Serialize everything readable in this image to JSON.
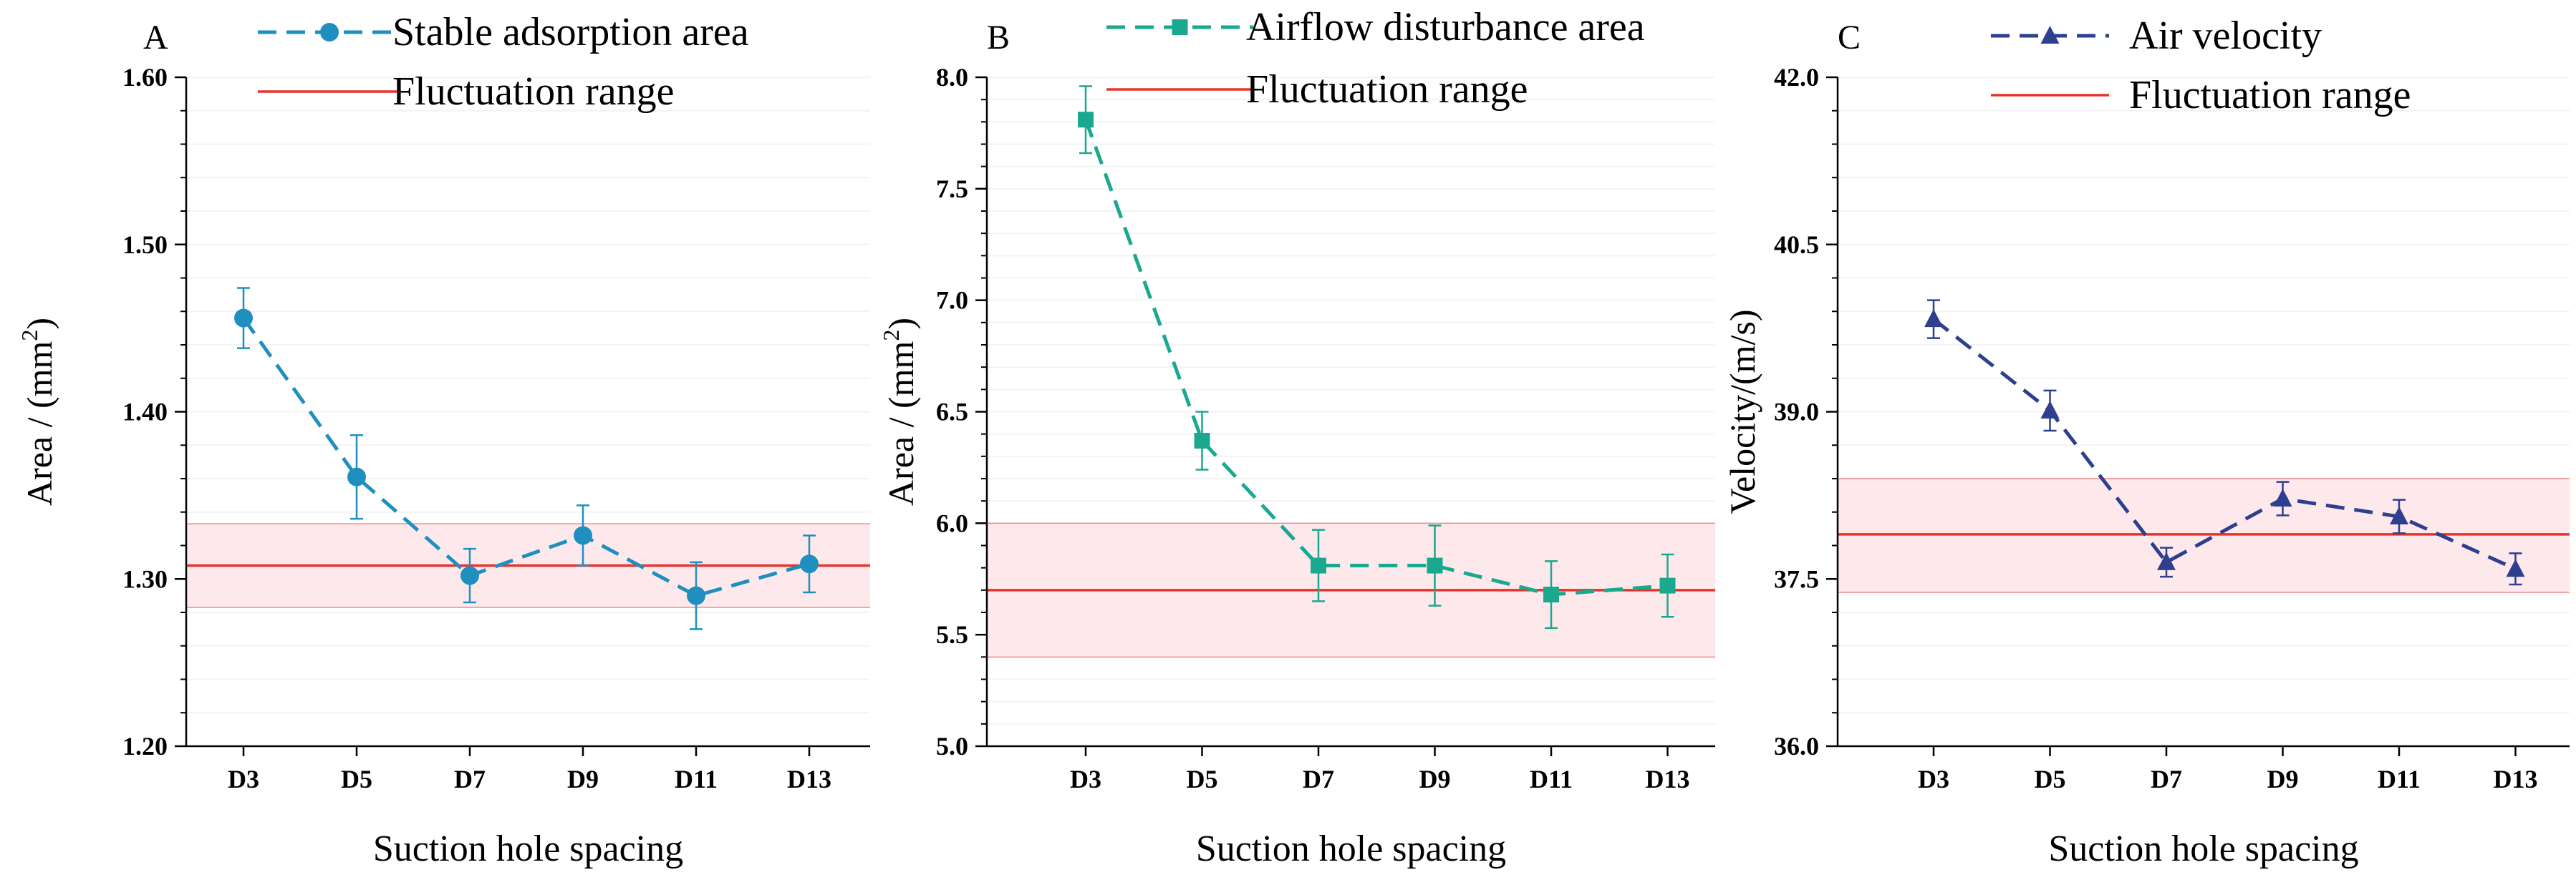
{
  "chart_data": [
    {
      "type": "line",
      "panel": "A",
      "title": "",
      "xlabel": "Suction hole spacing",
      "ylabel": "Area / (mm2)",
      "ylabel_main": "Area / (mm",
      "ylabel_sup": "2",
      "ylabel_tail": ")",
      "categories": [
        "D3",
        "D5",
        "D7",
        "D9",
        "D11",
        "D13"
      ],
      "series": [
        {
          "name": "Stable adsorption area",
          "marker": "circle",
          "color": "#1f8fc0",
          "values": [
            1.456,
            1.361,
            1.302,
            1.326,
            1.29,
            1.309
          ],
          "errors": [
            0.018,
            0.025,
            0.016,
            0.018,
            0.02,
            0.017
          ]
        }
      ],
      "reference": {
        "name": "Fluctuation range",
        "value": 1.308,
        "band": [
          1.283,
          1.333
        ],
        "color": "#e8332a",
        "band_color": "#fde9ec"
      },
      "ylim": [
        1.2,
        1.6
      ],
      "yticks": [
        "1.20",
        "1.30",
        "1.40",
        "1.50",
        "1.60"
      ],
      "ytick_values": [
        1.2,
        1.3,
        1.4,
        1.5,
        1.6
      ],
      "yminor_step": 0.02,
      "grid": true,
      "legend": "top"
    },
    {
      "type": "line",
      "panel": "B",
      "title": "",
      "xlabel": "Suction hole spacing",
      "ylabel": "Area / (mm2)",
      "ylabel_main": "Area / (mm",
      "ylabel_sup": "2",
      "ylabel_tail": ")",
      "categories": [
        "D3",
        "D5",
        "D7",
        "D9",
        "D11",
        "D13"
      ],
      "series": [
        {
          "name": "Airflow disturbance area",
          "marker": "square",
          "color": "#1aa88f",
          "values": [
            7.81,
            6.37,
            5.81,
            5.81,
            5.68,
            5.72
          ],
          "errors": [
            0.15,
            0.13,
            0.16,
            0.18,
            0.15,
            0.14
          ]
        }
      ],
      "reference": {
        "name": "Fluctuation range",
        "value": 5.7,
        "band": [
          5.4,
          6.0
        ],
        "color": "#e8332a",
        "band_color": "#fde9ec"
      },
      "ylim": [
        5.0,
        8.0
      ],
      "yticks": [
        "5.0",
        "5.5",
        "6.0",
        "6.5",
        "7.0",
        "7.5",
        "8.0"
      ],
      "ytick_values": [
        5.0,
        5.5,
        6.0,
        6.5,
        7.0,
        7.5,
        8.0
      ],
      "yminor_step": 0.1,
      "grid": true,
      "legend": "top"
    },
    {
      "type": "line",
      "panel": "C",
      "title": "",
      "xlabel": "Suction hole spacing",
      "ylabel": "Velocity/(m/s)",
      "ylabel_main": "Velocity/(m/s)",
      "ylabel_sup": "",
      "ylabel_tail": "",
      "categories": [
        "D3",
        "D5",
        "D7",
        "D9",
        "D11",
        "D13"
      ],
      "series": [
        {
          "name": "Air velocity",
          "marker": "triangle",
          "color": "#2e3f8f",
          "values": [
            39.83,
            39.01,
            37.65,
            38.22,
            38.06,
            37.59
          ],
          "errors": [
            0.17,
            0.18,
            0.13,
            0.15,
            0.15,
            0.14
          ]
        }
      ],
      "reference": {
        "name": "Fluctuation range",
        "value": 37.9,
        "band": [
          37.38,
          38.4
        ],
        "color": "#e8332a",
        "band_color": "#fde9ec"
      },
      "ylim": [
        36.0,
        42.0
      ],
      "yticks": [
        "36.0",
        "37.5",
        "39.0",
        "40.5",
        "42.0"
      ],
      "ytick_values": [
        36.0,
        37.5,
        39.0,
        40.5,
        42.0
      ],
      "yminor_step": 0.3,
      "grid": true,
      "legend": "top"
    }
  ]
}
